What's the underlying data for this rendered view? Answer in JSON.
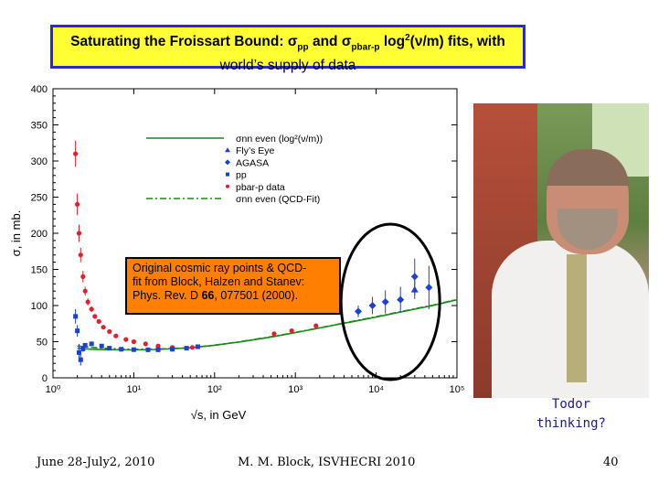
{
  "title": {
    "line1_prefix": "Saturating the Froissart Bound: ",
    "sigma": "σ",
    "sub_pp": "pp",
    "and_text": " and ",
    "sub_pbarp": "pbar-p",
    "log_text": " log",
    "sup": "2",
    "nu_text": "(ν/m) fits, with",
    "line2": "world’s supply of data"
  },
  "annotation": {
    "line1": "Original cosmic ray points & QCD-",
    "line2": "fit from Block, Halzen and Stanev:",
    "line3_pre": "Phys. Rev. D ",
    "line3_bold": "66",
    "line3_post": ", 077501 (2000)."
  },
  "photo_caption": {
    "line1": "Todor",
    "line2": "thinking?"
  },
  "footer": {
    "date": "June 28-July2, 2010",
    "author": "M. M. Block, ISVHECRI 2010",
    "page": "40"
  },
  "chart_data": {
    "type": "scatter",
    "xscale": "log",
    "xlim": [
      1,
      100000
    ],
    "ylim": [
      0,
      400
    ],
    "xlabel": "√s, in GeV",
    "ylabel": "σ, in mb.",
    "yticks": [
      "0",
      "50",
      "100",
      "150",
      "200",
      "250",
      "300",
      "350",
      "400"
    ],
    "xticks": [
      "10⁰",
      "10¹",
      "10²",
      "10³",
      "10⁴",
      "10⁵"
    ],
    "grid": false,
    "legend_placement": "top-center",
    "legend": [
      {
        "label": "σnn even (log²(ν/m))",
        "kind": "line",
        "color": "#1a8a1a"
      },
      {
        "label": "Fly’s Eye",
        "kind": "triangle",
        "color": "#1f3fd0"
      },
      {
        "label": "AGASA",
        "kind": "diamond",
        "color": "#1f3fd0"
      },
      {
        "label": "pp",
        "kind": "square",
        "color": "#1f3fd0"
      },
      {
        "label": "pbar-p data",
        "kind": "circle",
        "color": "#e0202a"
      },
      {
        "label": "σnn even (QCD-Fit)",
        "kind": "dashdot",
        "color": "#1a8a1a"
      }
    ],
    "series": [
      {
        "name": "σnn even (log²(ν/m))",
        "style": "line",
        "color": "#1a8a1a",
        "x": [
          2,
          3,
          5,
          10,
          20,
          50,
          100,
          200,
          500,
          1000,
          2000,
          5000,
          10000,
          20000,
          50000,
          100000
        ],
        "y": [
          41,
          39.5,
          38.8,
          38.6,
          39.2,
          41.5,
          45,
          49.5,
          56.5,
          62.5,
          69,
          77.5,
          84,
          91,
          100,
          108
        ]
      },
      {
        "name": "σnn even (QCD-Fit)",
        "style": "dashdot",
        "color": "#1a8a1a",
        "x": [
          2,
          3,
          5,
          10,
          20,
          50,
          100,
          200,
          500,
          1000,
          2000,
          5000,
          10000,
          20000,
          50000,
          100000
        ],
        "y": [
          44,
          42,
          40.5,
          39.5,
          39.8,
          41.8,
          45.2,
          49.8,
          56.8,
          62.8,
          69.3,
          78,
          84.5,
          91.5,
          100.5,
          108.5
        ]
      },
      {
        "name": "pbar-p data",
        "style": "circle",
        "color": "#e0202a",
        "x": [
          1.9,
          2.0,
          2.1,
          2.2,
          2.35,
          2.5,
          2.7,
          3.0,
          3.3,
          3.7,
          4.2,
          5,
          6,
          8,
          10,
          14,
          20,
          30,
          53,
          62,
          546,
          900,
          1800
        ],
        "y": [
          310,
          240,
          200,
          170,
          140,
          120,
          105,
          95,
          85,
          78,
          70,
          64,
          58,
          53,
          50,
          47,
          44,
          42,
          42,
          43,
          61,
          65,
          72
        ],
        "err": [
          18,
          15,
          12,
          10,
          8,
          6,
          5,
          4,
          3,
          3,
          2,
          2,
          2,
          2,
          2,
          1,
          1,
          1,
          1,
          1,
          2,
          2,
          3
        ]
      },
      {
        "name": "pp",
        "style": "square",
        "color": "#1f3fd0",
        "x": [
          1.9,
          2.0,
          2.1,
          2.2,
          2.35,
          2.5,
          3.0,
          4,
          5,
          7,
          10,
          15,
          20,
          30,
          45,
          62
        ],
        "y": [
          85,
          65,
          35,
          25,
          40,
          45,
          47,
          44,
          41,
          39.5,
          39,
          38.8,
          38.8,
          39.5,
          41,
          43
        ],
        "err": [
          10,
          8,
          12,
          8,
          4,
          3,
          2,
          2,
          1,
          1,
          1,
          1,
          1,
          1,
          1,
          1
        ]
      },
      {
        "name": "Fly’s Eye",
        "style": "triangle",
        "color": "#1f3fd0",
        "x": [
          30000
        ],
        "y": [
          122
        ],
        "err": [
          13
        ]
      },
      {
        "name": "AGASA",
        "style": "diamond",
        "color": "#1f3fd0",
        "x": [
          6000,
          9000,
          13000,
          20000,
          30000,
          45000
        ],
        "y": [
          92,
          100,
          105,
          108,
          140,
          125
        ],
        "err": [
          8,
          12,
          16,
          18,
          25,
          30
        ]
      }
    ],
    "highlight_ellipse": {
      "x_center": 15000,
      "y_center": 105,
      "color": "#000000"
    }
  }
}
